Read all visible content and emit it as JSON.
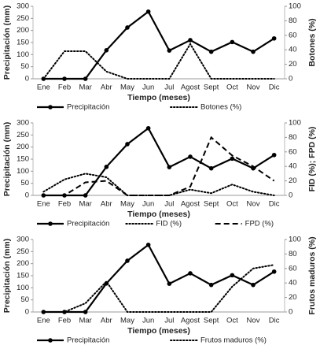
{
  "chart_data": [
    {
      "type": "line",
      "x_label": "Tiempo (meses)",
      "y_label": "Precipitación (mm)",
      "y2_label": "Botones (%)",
      "categories": [
        "Ene",
        "Feb",
        "Mar",
        "Abr",
        "May",
        "Jun",
        "Jul",
        "Agost",
        "Sept",
        "Oct",
        "Nov",
        "Dic"
      ],
      "ylim": [
        0,
        300
      ],
      "yticks": [
        0,
        50,
        100,
        150,
        200,
        250,
        300
      ],
      "y2lim": [
        0,
        100
      ],
      "y2ticks": [
        0,
        20,
        40,
        60,
        80,
        100
      ],
      "series": [
        {
          "name": "Precipitación",
          "color": "#000000",
          "style": "solid",
          "marker": "circle",
          "values": [
            0,
            0,
            0,
            118,
            212,
            278,
            117,
            160,
            112,
            152,
            112,
            167
          ]
        },
        {
          "name": "Botones (%)",
          "color": "#000000",
          "style": "dotted",
          "axis": "y2",
          "values": [
            0,
            38,
            38,
            10,
            0,
            0,
            0,
            48,
            0,
            0,
            0,
            0
          ]
        }
      ]
    },
    {
      "type": "line",
      "x_label": "Tiempo (meses)",
      "y_label": "Precipitación (mm)",
      "y2_label": "FID (%); FPD (%)",
      "categories": [
        "Ene",
        "Feb",
        "Mar",
        "Abr",
        "May",
        "Jun",
        "Jul",
        "Agost",
        "Sept",
        "Oct",
        "Nov",
        "Dic"
      ],
      "ylim": [
        0,
        300
      ],
      "yticks": [
        0,
        50,
        100,
        150,
        200,
        250,
        300
      ],
      "y2lim": [
        0,
        100
      ],
      "y2ticks": [
        0,
        20,
        40,
        60,
        80,
        100
      ],
      "series": [
        {
          "name": "Precipitación",
          "color": "#000000",
          "style": "solid",
          "marker": "circle",
          "values": [
            0,
            0,
            0,
            118,
            212,
            278,
            117,
            160,
            112,
            152,
            112,
            167
          ]
        },
        {
          "name": "FID (%)",
          "color": "#000000",
          "style": "dotted",
          "axis": "y2",
          "values": [
            5,
            22,
            30,
            25,
            0,
            0,
            0,
            8,
            3,
            15,
            5,
            0
          ]
        },
        {
          "name": "FPD (%)",
          "color": "#000000",
          "style": "dashed",
          "axis": "y2",
          "values": [
            0,
            0,
            18,
            20,
            0,
            0,
            0,
            12,
            80,
            55,
            40,
            20
          ]
        }
      ]
    },
    {
      "type": "line",
      "x_label": "Tiempo (meses)",
      "y_label": "Precipitación (mm)",
      "y2_label": "Frutos maduros (%)",
      "categories": [
        "Ene",
        "Feb",
        "Mar",
        "Abr",
        "May",
        "Jun",
        "Jul",
        "Agost",
        "Sept",
        "Oct",
        "Nov",
        "Dic"
      ],
      "ylim": [
        0,
        300
      ],
      "yticks": [
        0,
        50,
        100,
        150,
        200,
        250,
        300
      ],
      "y2lim": [
        0,
        100
      ],
      "y2ticks": [
        0,
        20,
        40,
        60,
        80,
        100
      ],
      "series": [
        {
          "name": "Precipitación",
          "color": "#000000",
          "style": "solid",
          "marker": "circle",
          "values": [
            0,
            0,
            0,
            118,
            212,
            278,
            117,
            160,
            112,
            152,
            112,
            167
          ]
        },
        {
          "name": "Frutos maduros (%)",
          "color": "#000000",
          "style": "dotted",
          "axis": "y2",
          "values": [
            0,
            0,
            12,
            42,
            0,
            0,
            0,
            0,
            0,
            35,
            60,
            65
          ]
        }
      ]
    }
  ]
}
